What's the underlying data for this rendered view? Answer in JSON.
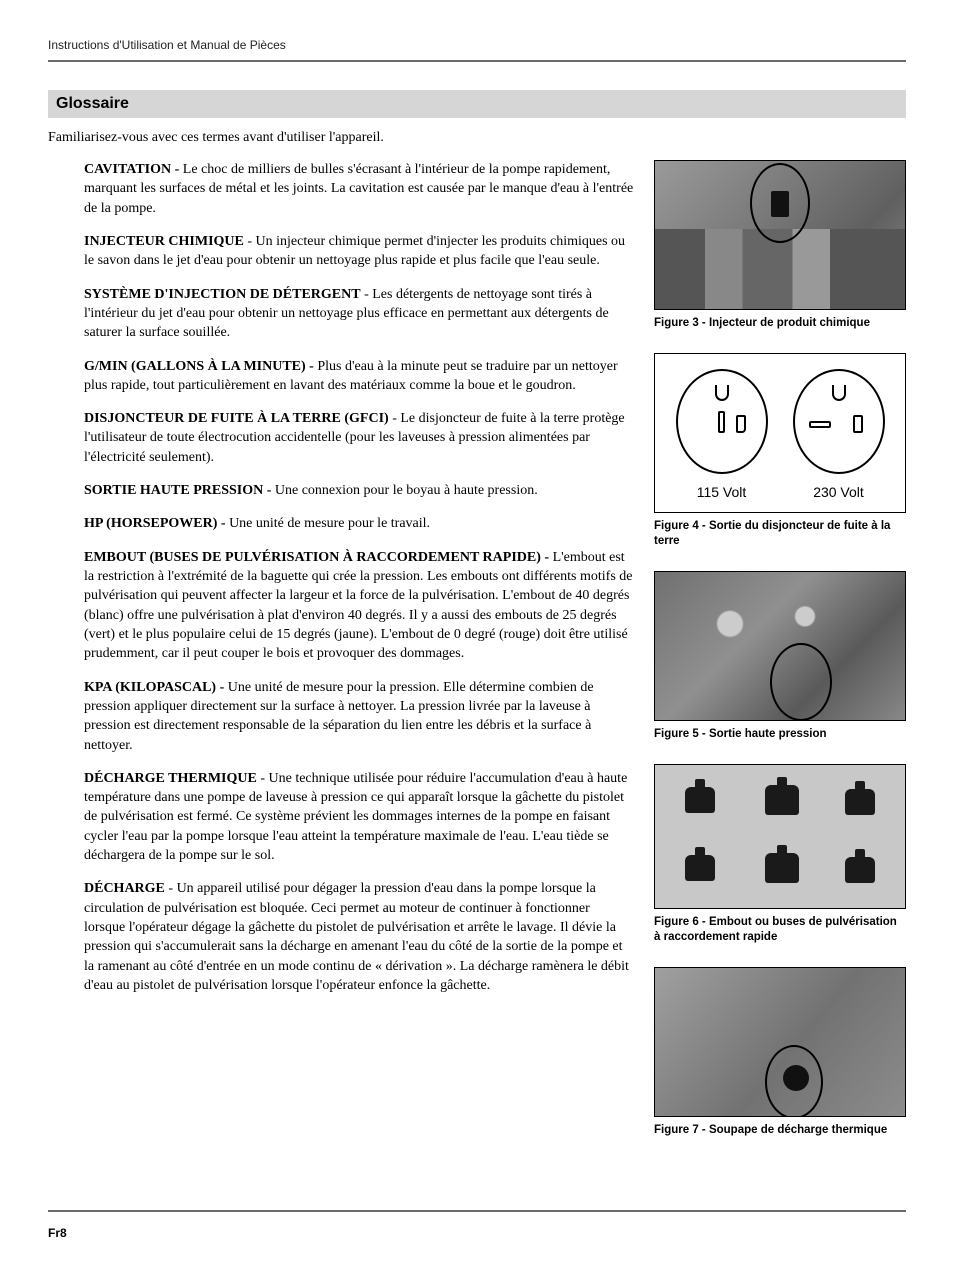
{
  "header": "Instructions d'Utilisation et Manual de Pièces",
  "section_title": "Glossaire",
  "intro": "Familiarisez-vous avec ces termes avant d'utiliser l'appareil.",
  "terms": {
    "cavitation": {
      "label": "CAVITATION - ",
      "body": "Le choc de milliers de bulles s'écrasant à l'intérieur de la pompe rapidement, marquant les surfaces de métal et les joints. La cavitation est causée par le manque d'eau à l'entrée de la pompe."
    },
    "injecteur": {
      "label": "INJECTEUR CHIMIQUE",
      "body": " - Un injecteur chimique permet d'injecter les produits chimiques ou le savon dans le jet d'eau pour obtenir un nettoyage plus rapide et plus facile que l'eau seule."
    },
    "systeme": {
      "label": "SYSTÈME D'INJECTION DE DÉTERGENT",
      "body": " - Les détergents de nettoyage sont tirés à l'intérieur du jet d'eau pour obtenir un nettoyage plus efficace en permettant aux détergents de saturer la surface souillée."
    },
    "gmin": {
      "label": "G/MIN (GALLONS À LA MINUTE) - ",
      "body": " Plus d'eau à la minute peut se traduire par un nettoyer plus rapide, tout particulièrement en lavant des matériaux comme la boue et le goudron."
    },
    "gfci": {
      "label": "DISJONCTEUR DE FUITE À LA TERRE (GFCI)",
      "body": " - Le disjoncteur de fuite à la terre protège l'utilisateur de toute électrocution accidentelle (pour les laveuses à pression alimentées par l'électricité seulement)."
    },
    "sortie": {
      "label": "SORTIE HAUTE PRESSION - ",
      "body": "Une connexion pour le boyau à haute pression."
    },
    "hp": {
      "label": "HP (HORSEPOWER) - ",
      "body": "Une unité de mesure pour le travail."
    },
    "embout": {
      "label": "EMBOUT (BUSES DE PULVÉRISATION À RACCORDEMENT RAPIDE) - ",
      "body": "L'embout est la restriction à l'extrémité de la baguette qui crée la pression. Les embouts ont différents motifs de pulvérisation qui peuvent affecter la largeur et la force de la pulvérisation. L'embout de 40 degrés (blanc) offre une pulvérisation à plat d'environ 40 degrés. Il y a aussi des embouts de 25 degrés (vert) et le plus populaire celui de 15 degrés (jaune). L'embout de 0 degré (rouge) doit être utilisé prudemment, car il peut couper le bois et provoquer des dommages."
    },
    "kpa": {
      "label": "KPA (KILOPASCAL)  - ",
      "body": " Une unité de mesure pour la pression. Elle détermine combien de pression appliquer directement sur la surface à nettoyer. La pression livrée par la laveuse à pression est directement responsable de la séparation du lien entre les débris et la surface à nettoyer."
    },
    "thermique": {
      "label": "DÉCHARGE THERMIQUE",
      "body": " - Une technique utilisée pour réduire l'accumulation d'eau à haute température dans une pompe de laveuse à pression ce qui apparaît lorsque la gâchette du pistolet de pulvérisation est fermé. Ce système prévient les dommages internes de la pompe en faisant cycler l'eau par la pompe lorsque l'eau atteint la température maximale de l'eau. L'eau tiède se déchargera de la pompe sur le sol."
    },
    "decharge": {
      "label": "DÉCHARGE",
      "body": " - Un appareil utilisé pour dégager la pression d'eau dans la pompe lorsque la circulation de pulvérisation est bloquée. Ceci permet au moteur de continuer à fonctionner lorsque l'opérateur dégage la gâchette du pistolet de pulvérisation et arrête le lavage. Il dévie la pression qui s'accumulerait sans la décharge en amenant l'eau du côté de la sortie de la pompe et la ramenant au côté d'entrée en un mode continu de « dérivation ». La décharge ramènera le débit d'eau au pistolet de pulvérisation lorsque l'opérateur enfonce la gâchette."
    }
  },
  "figures": {
    "fig3": "Figure 3 - Injecteur de produit chimique",
    "fig4": "Figure 4 - Sortie du disjoncteur de fuite à la terre",
    "fig5": "Figure 5 - Sortie haute pression",
    "fig6": "Figure 6 - Embout ou buses de pulvérisation à raccordement rapide",
    "fig7": "Figure 7 - Soupape de décharge thermique",
    "volt115": "115 Volt",
    "volt230": "230 Volt"
  },
  "footer": "Fr8"
}
